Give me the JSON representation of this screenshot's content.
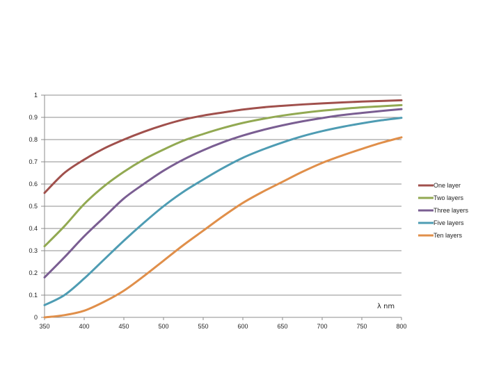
{
  "chart_data": {
    "type": "line",
    "title": "",
    "xlabel": "λ nm",
    "ylabel": "",
    "xlim": [
      350,
      800
    ],
    "ylim": [
      0,
      1
    ],
    "x_ticks": [
      "350",
      "400",
      "450",
      "500",
      "550",
      "600",
      "650",
      "700",
      "750",
      "800"
    ],
    "y_ticks": [
      "0",
      "0.1",
      "0.2",
      "0.3",
      "0.4",
      "0.5",
      "0.6",
      "0.7",
      "0.8",
      "0.9",
      "1"
    ],
    "grid": true,
    "legend_position": "right",
    "x": [
      350,
      375,
      400,
      425,
      450,
      475,
      500,
      525,
      550,
      575,
      600,
      625,
      650,
      675,
      700,
      725,
      750,
      775,
      800
    ],
    "series": [
      {
        "name": "One layer",
        "color": "#a0504c",
        "values": [
          0.56,
          0.65,
          0.71,
          0.76,
          0.8,
          0.835,
          0.865,
          0.89,
          0.908,
          0.922,
          0.935,
          0.945,
          0.952,
          0.958,
          0.963,
          0.967,
          0.971,
          0.974,
          0.977
        ]
      },
      {
        "name": "Two layers",
        "color": "#92a952",
        "values": [
          0.32,
          0.41,
          0.51,
          0.59,
          0.655,
          0.71,
          0.755,
          0.795,
          0.825,
          0.852,
          0.875,
          0.893,
          0.908,
          0.92,
          0.93,
          0.938,
          0.945,
          0.95,
          0.955
        ]
      },
      {
        "name": "Three layers",
        "color": "#7a5e92",
        "values": [
          0.18,
          0.27,
          0.365,
          0.45,
          0.535,
          0.6,
          0.66,
          0.71,
          0.752,
          0.788,
          0.818,
          0.843,
          0.864,
          0.882,
          0.897,
          0.91,
          0.92,
          0.929,
          0.937
        ]
      },
      {
        "name": "Five layers",
        "color": "#4e9cb3",
        "values": [
          0.055,
          0.1,
          0.175,
          0.26,
          0.345,
          0.425,
          0.5,
          0.565,
          0.62,
          0.672,
          0.718,
          0.755,
          0.787,
          0.815,
          0.838,
          0.857,
          0.873,
          0.887,
          0.898
        ]
      },
      {
        "name": "Ten layers",
        "color": "#e08f4a",
        "values": [
          0.0,
          0.01,
          0.03,
          0.07,
          0.12,
          0.185,
          0.255,
          0.325,
          0.39,
          0.455,
          0.515,
          0.565,
          0.61,
          0.655,
          0.695,
          0.728,
          0.758,
          0.786,
          0.81
        ]
      }
    ]
  }
}
